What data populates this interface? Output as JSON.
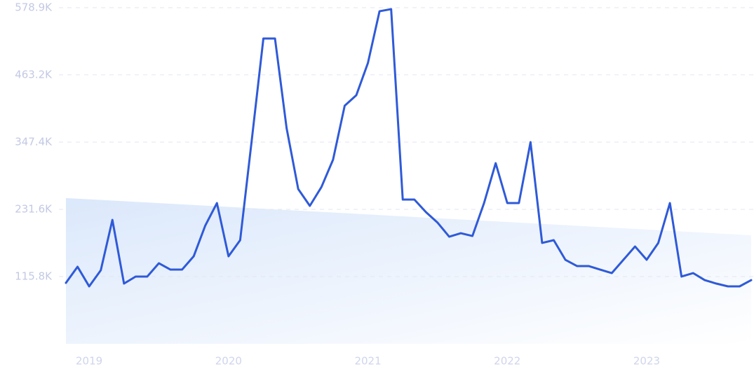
{
  "chart_data": {
    "type": "line",
    "categories": [
      null,
      null,
      "2019",
      null,
      null,
      null,
      null,
      null,
      null,
      null,
      null,
      null,
      null,
      null,
      "2020",
      null,
      null,
      null,
      null,
      null,
      null,
      null,
      null,
      null,
      null,
      null,
      "2021",
      null,
      null,
      null,
      null,
      null,
      null,
      null,
      null,
      null,
      null,
      null,
      "2022",
      null,
      null,
      null,
      null,
      null,
      null,
      null,
      null,
      null,
      null,
      null,
      "2023",
      null,
      null,
      null,
      null,
      null,
      null,
      null,
      null,
      null
    ],
    "series": [
      {
        "color": "#2f5ad8",
        "values": [
          104900,
          132700,
          98900,
          126600,
          213400,
          103700,
          115800,
          115800,
          138700,
          127800,
          127800,
          150700,
          203800,
          242400,
          150700,
          178500,
          350900,
          525800,
          525800,
          371400,
          266500,
          237600,
          270100,
          317200,
          410000,
          428100,
          483600,
          572800,
          576400,
          248400,
          248400,
          226700,
          208600,
          184500,
          190500,
          185700,
          242400,
          311100,
          242400,
          242400,
          347300,
          173700,
          178500,
          144700,
          133900,
          133900,
          127800,
          121800,
          144700,
          167600,
          144700,
          173700,
          242400,
          115800,
          121800,
          109700,
          103700,
          98900,
          98900,
          109700
        ]
      }
    ],
    "trend": {
      "color": "#dbe8fb",
      "values": [
        251000,
        187000
      ]
    },
    "ylim": [
      0,
      578900
    ],
    "yticks": [
      {
        "value": 115800,
        "label": "115.8K"
      },
      {
        "value": 231600,
        "label": "231.6K"
      },
      {
        "value": 347400,
        "label": "347.4K"
      },
      {
        "value": 463200,
        "label": "463.2K"
      },
      {
        "value": 578900,
        "label": "578.9K"
      }
    ],
    "grid": true
  }
}
